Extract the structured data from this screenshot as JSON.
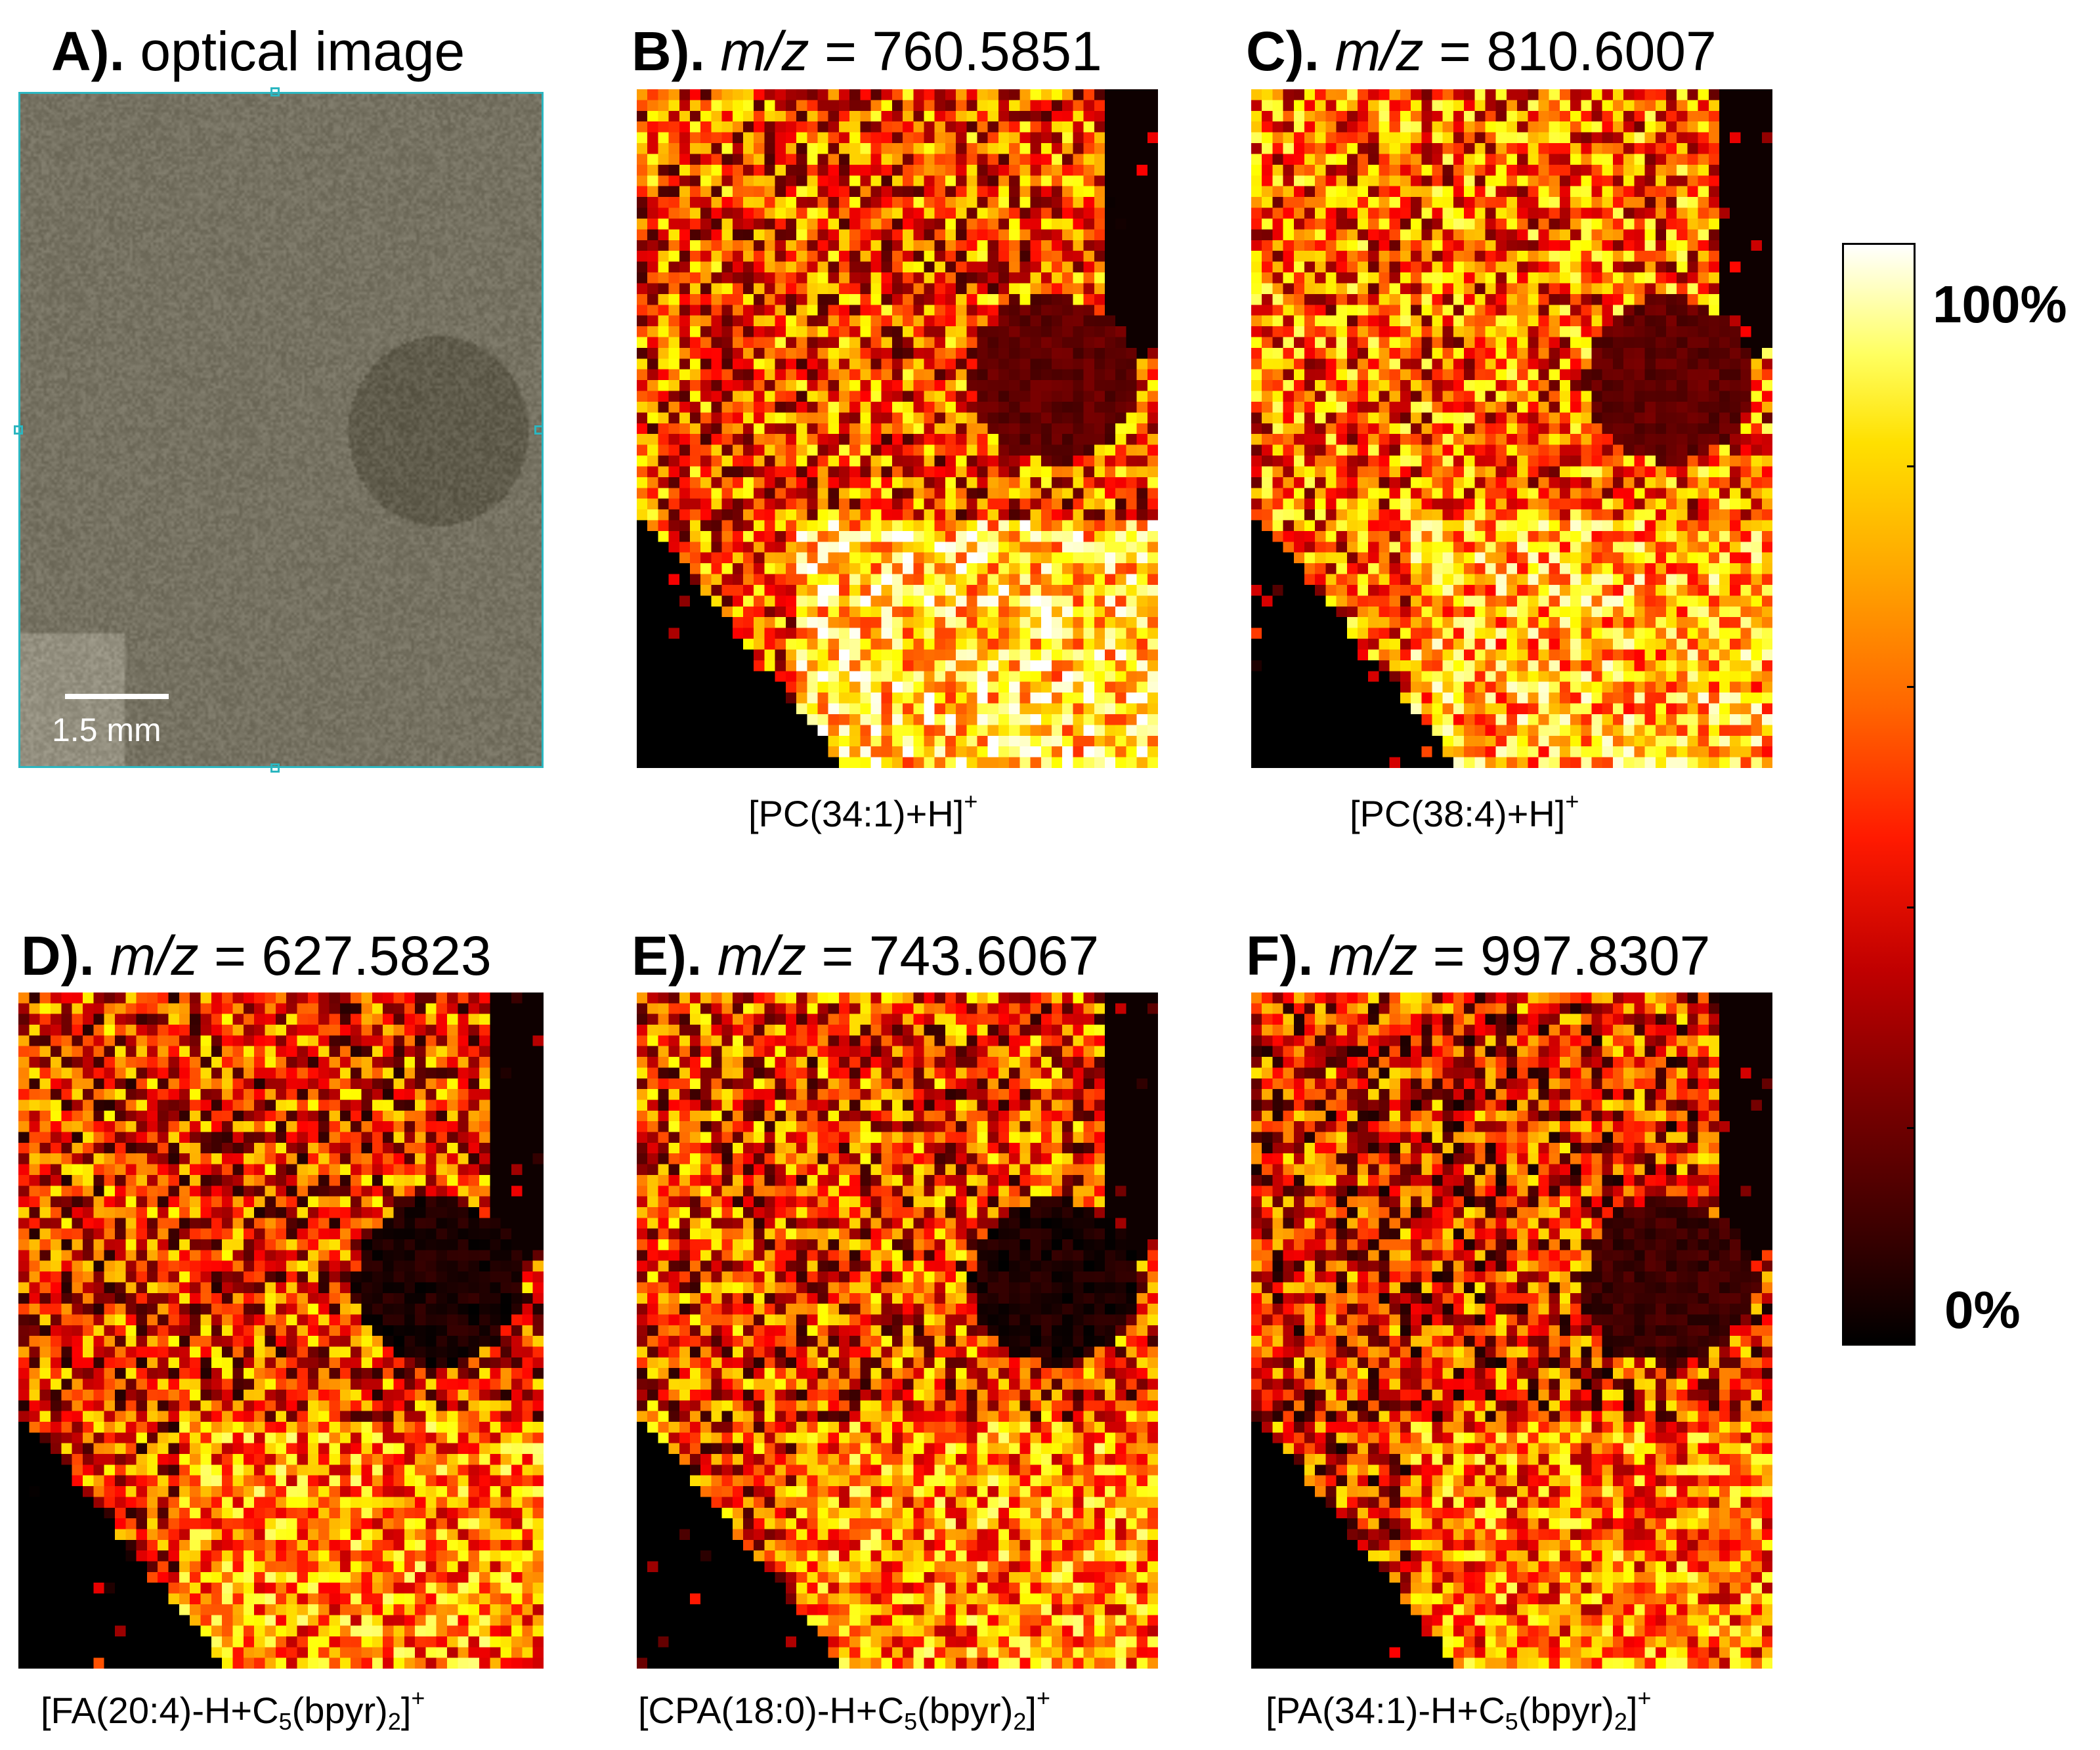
{
  "panels": [
    {
      "id": "A",
      "letter": "A).",
      "title_text": "optical image",
      "type": "optical"
    },
    {
      "id": "B",
      "letter": "B).",
      "mz_label": "m/z",
      "mz_value": "= 760.5851",
      "caption": "[PC(34:1)+H]",
      "caption_sup": "+",
      "type": "ion"
    },
    {
      "id": "C",
      "letter": "C).",
      "mz_label": "m/z",
      "mz_value": "= 810.6007",
      "caption": "[PC(38:4)+H]",
      "caption_sup": "+",
      "type": "ion"
    },
    {
      "id": "D",
      "letter": "D).",
      "mz_label": "m/z",
      "mz_value": "= 627.5823",
      "caption_pre": "[FA(20:4)-H+C",
      "caption_sub": "5",
      "caption_mid": "(bpyr)",
      "caption_sub2": "2",
      "caption_post": "]",
      "caption_sup": "+",
      "type": "ion"
    },
    {
      "id": "E",
      "letter": "E).",
      "mz_label": "m/z",
      "mz_value": "= 743.6067",
      "caption_pre": "[CPA(18:0)-H+C",
      "caption_sub": "5",
      "caption_mid": "(bpyr)",
      "caption_sub2": "2",
      "caption_post": "]",
      "caption_sup": "+",
      "type": "ion"
    },
    {
      "id": "F",
      "letter": "F).",
      "mz_label": "m/z",
      "mz_value": "= 997.8307",
      "caption_pre": "[PA(34:1)-H+C",
      "caption_sub": "5",
      "caption_mid": "(bpyr)",
      "caption_sub2": "2",
      "caption_post": "]",
      "caption_sup": "+",
      "type": "ion"
    }
  ],
  "scalebar": {
    "label": "1.5 mm"
  },
  "colorbar": {
    "max_label": "100%",
    "min_label": "0%",
    "colormap": "hot"
  },
  "colors": {
    "optical_border": "#2bb6c0"
  },
  "chart_data": {
    "type": "heatmap",
    "colormap": "hot",
    "value_range": [
      0,
      100
    ],
    "value_unit": "%",
    "grid": "approx. 49 x 63 pixels per ion image",
    "series": [
      {
        "name": "[PC(34:1)+H]+",
        "mz": 760.5851
      },
      {
        "name": "[PC(38:4)+H]+",
        "mz": 810.6007
      },
      {
        "name": "[FA(20:4)-H+C5(bpyr)2]+",
        "mz": 627.5823
      },
      {
        "name": "[CPA(18:0)-H+C5(bpyr)2]+",
        "mz": 743.6067
      },
      {
        "name": "[PA(34:1)-H+C5(bpyr)2]+",
        "mz": 997.8307
      }
    ]
  }
}
